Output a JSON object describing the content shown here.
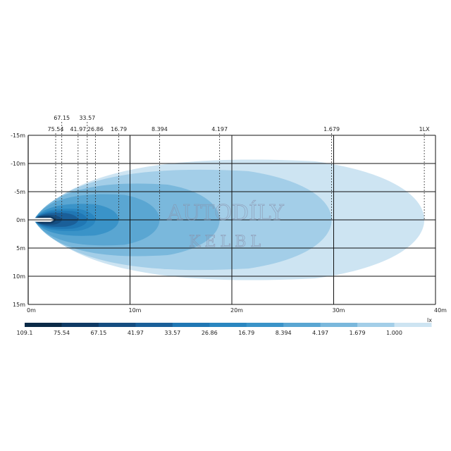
{
  "chart_data": {
    "type": "isolux-contour",
    "x_unit": "m",
    "y_unit": "m",
    "xlim": [
      0,
      40
    ],
    "ylim": [
      -15,
      15
    ],
    "x_ticks": [
      "0m",
      "10m",
      "20m",
      "30m",
      "40m"
    ],
    "y_ticks": [
      "-15m",
      "-10m",
      "-5m",
      "0m",
      "5m",
      "10m",
      "15m"
    ],
    "legend_unit": "lx",
    "legend": [
      {
        "label": "109.1",
        "color": "#0a2a47"
      },
      {
        "label": "75.54",
        "color": "#0f3a64"
      },
      {
        "label": "67.15",
        "color": "#154d80"
      },
      {
        "label": "41.97",
        "color": "#1a5f99"
      },
      {
        "label": "33.57",
        "color": "#2077b4"
      },
      {
        "label": "26.86",
        "color": "#2a86c0"
      },
      {
        "label": "16.79",
        "color": "#3a93c8"
      },
      {
        "label": "8.394",
        "color": "#5aa6d2"
      },
      {
        "label": "4.197",
        "color": "#7ab8dc"
      },
      {
        "label": "1.679",
        "color": "#a3cee8"
      },
      {
        "label": "1.000",
        "color": "#cde4f2"
      }
    ],
    "contours": [
      {
        "lux": "1LX",
        "reach_m": 38.9,
        "half_width_m": 11.3,
        "color": "#cde4f2"
      },
      {
        "lux": "1.679",
        "reach_m": 29.8,
        "half_width_m": 9.4,
        "color": "#a3cee8"
      },
      {
        "lux": "4.197",
        "reach_m": 18.8,
        "half_width_m": 6.8,
        "color": "#7ab8dc"
      },
      {
        "lux": "8.394",
        "reach_m": 12.9,
        "half_width_m": 4.8,
        "color": "#5aa6d2"
      },
      {
        "lux": "16.79",
        "reach_m": 8.9,
        "half_width_m": 3.0,
        "color": "#3a93c8"
      },
      {
        "lux": "26.86",
        "reach_m": 6.6,
        "half_width_m": 2.1,
        "color": "#2a86c0"
      },
      {
        "lux": "33.57",
        "reach_m": 5.8,
        "half_width_m": 1.7,
        "color": "#2077b4"
      },
      {
        "lux": "41.97",
        "reach_m": 4.9,
        "half_width_m": 1.3,
        "color": "#1a5f99"
      },
      {
        "lux": "67.15",
        "reach_m": 3.3,
        "half_width_m": 0.9,
        "color": "#154d80"
      },
      {
        "lux": "75.54",
        "reach_m": 2.7,
        "half_width_m": 0.7,
        "color": "#0f3a64"
      },
      {
        "lux": "109.1",
        "reach_m": 1.8,
        "half_width_m": 0.45,
        "color": "#0a2a47"
      }
    ],
    "reach_labels": [
      {
        "text": "75.54",
        "x": 2.7,
        "row": 2
      },
      {
        "text": "67.15",
        "x": 3.3,
        "row": 1
      },
      {
        "text": "41.97",
        "x": 4.9,
        "row": 2
      },
      {
        "text": "33.57",
        "x": 5.8,
        "row": 1
      },
      {
        "text": "26.86",
        "x": 6.6,
        "row": 2
      },
      {
        "text": "16.79",
        "x": 8.9,
        "row": 2
      },
      {
        "text": "8.394",
        "x": 12.9,
        "row": 2
      },
      {
        "text": "4.197",
        "x": 18.8,
        "row": 2
      },
      {
        "text": "1.679",
        "x": 29.8,
        "row": 2
      },
      {
        "text": "1LX",
        "x": 38.9,
        "row": 2
      }
    ],
    "watermark": [
      "AUTODÍLY",
      "KELBL"
    ]
  }
}
